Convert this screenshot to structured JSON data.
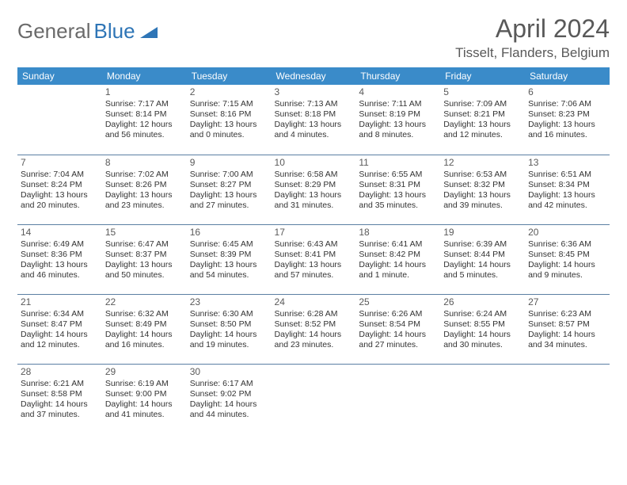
{
  "brand": {
    "text1": "General",
    "text2": "Blue",
    "color1": "#6a6a6a",
    "color2": "#2e75b6"
  },
  "title": "April 2024",
  "location": "Tisselt, Flanders, Belgium",
  "header_bg": "#3a8bc9",
  "weekdays": [
    "Sunday",
    "Monday",
    "Tuesday",
    "Wednesday",
    "Thursday",
    "Friday",
    "Saturday"
  ],
  "weeks": [
    [
      null,
      {
        "n": "1",
        "sr": "Sunrise: 7:17 AM",
        "ss": "Sunset: 8:14 PM",
        "dl": "Daylight: 12 hours and 56 minutes."
      },
      {
        "n": "2",
        "sr": "Sunrise: 7:15 AM",
        "ss": "Sunset: 8:16 PM",
        "dl": "Daylight: 13 hours and 0 minutes."
      },
      {
        "n": "3",
        "sr": "Sunrise: 7:13 AM",
        "ss": "Sunset: 8:18 PM",
        "dl": "Daylight: 13 hours and 4 minutes."
      },
      {
        "n": "4",
        "sr": "Sunrise: 7:11 AM",
        "ss": "Sunset: 8:19 PM",
        "dl": "Daylight: 13 hours and 8 minutes."
      },
      {
        "n": "5",
        "sr": "Sunrise: 7:09 AM",
        "ss": "Sunset: 8:21 PM",
        "dl": "Daylight: 13 hours and 12 minutes."
      },
      {
        "n": "6",
        "sr": "Sunrise: 7:06 AM",
        "ss": "Sunset: 8:23 PM",
        "dl": "Daylight: 13 hours and 16 minutes."
      }
    ],
    [
      {
        "n": "7",
        "sr": "Sunrise: 7:04 AM",
        "ss": "Sunset: 8:24 PM",
        "dl": "Daylight: 13 hours and 20 minutes."
      },
      {
        "n": "8",
        "sr": "Sunrise: 7:02 AM",
        "ss": "Sunset: 8:26 PM",
        "dl": "Daylight: 13 hours and 23 minutes."
      },
      {
        "n": "9",
        "sr": "Sunrise: 7:00 AM",
        "ss": "Sunset: 8:27 PM",
        "dl": "Daylight: 13 hours and 27 minutes."
      },
      {
        "n": "10",
        "sr": "Sunrise: 6:58 AM",
        "ss": "Sunset: 8:29 PM",
        "dl": "Daylight: 13 hours and 31 minutes."
      },
      {
        "n": "11",
        "sr": "Sunrise: 6:55 AM",
        "ss": "Sunset: 8:31 PM",
        "dl": "Daylight: 13 hours and 35 minutes."
      },
      {
        "n": "12",
        "sr": "Sunrise: 6:53 AM",
        "ss": "Sunset: 8:32 PM",
        "dl": "Daylight: 13 hours and 39 minutes."
      },
      {
        "n": "13",
        "sr": "Sunrise: 6:51 AM",
        "ss": "Sunset: 8:34 PM",
        "dl": "Daylight: 13 hours and 42 minutes."
      }
    ],
    [
      {
        "n": "14",
        "sr": "Sunrise: 6:49 AM",
        "ss": "Sunset: 8:36 PM",
        "dl": "Daylight: 13 hours and 46 minutes."
      },
      {
        "n": "15",
        "sr": "Sunrise: 6:47 AM",
        "ss": "Sunset: 8:37 PM",
        "dl": "Daylight: 13 hours and 50 minutes."
      },
      {
        "n": "16",
        "sr": "Sunrise: 6:45 AM",
        "ss": "Sunset: 8:39 PM",
        "dl": "Daylight: 13 hours and 54 minutes."
      },
      {
        "n": "17",
        "sr": "Sunrise: 6:43 AM",
        "ss": "Sunset: 8:41 PM",
        "dl": "Daylight: 13 hours and 57 minutes."
      },
      {
        "n": "18",
        "sr": "Sunrise: 6:41 AM",
        "ss": "Sunset: 8:42 PM",
        "dl": "Daylight: 14 hours and 1 minute."
      },
      {
        "n": "19",
        "sr": "Sunrise: 6:39 AM",
        "ss": "Sunset: 8:44 PM",
        "dl": "Daylight: 14 hours and 5 minutes."
      },
      {
        "n": "20",
        "sr": "Sunrise: 6:36 AM",
        "ss": "Sunset: 8:45 PM",
        "dl": "Daylight: 14 hours and 9 minutes."
      }
    ],
    [
      {
        "n": "21",
        "sr": "Sunrise: 6:34 AM",
        "ss": "Sunset: 8:47 PM",
        "dl": "Daylight: 14 hours and 12 minutes."
      },
      {
        "n": "22",
        "sr": "Sunrise: 6:32 AM",
        "ss": "Sunset: 8:49 PM",
        "dl": "Daylight: 14 hours and 16 minutes."
      },
      {
        "n": "23",
        "sr": "Sunrise: 6:30 AM",
        "ss": "Sunset: 8:50 PM",
        "dl": "Daylight: 14 hours and 19 minutes."
      },
      {
        "n": "24",
        "sr": "Sunrise: 6:28 AM",
        "ss": "Sunset: 8:52 PM",
        "dl": "Daylight: 14 hours and 23 minutes."
      },
      {
        "n": "25",
        "sr": "Sunrise: 6:26 AM",
        "ss": "Sunset: 8:54 PM",
        "dl": "Daylight: 14 hours and 27 minutes."
      },
      {
        "n": "26",
        "sr": "Sunrise: 6:24 AM",
        "ss": "Sunset: 8:55 PM",
        "dl": "Daylight: 14 hours and 30 minutes."
      },
      {
        "n": "27",
        "sr": "Sunrise: 6:23 AM",
        "ss": "Sunset: 8:57 PM",
        "dl": "Daylight: 14 hours and 34 minutes."
      }
    ],
    [
      {
        "n": "28",
        "sr": "Sunrise: 6:21 AM",
        "ss": "Sunset: 8:58 PM",
        "dl": "Daylight: 14 hours and 37 minutes."
      },
      {
        "n": "29",
        "sr": "Sunrise: 6:19 AM",
        "ss": "Sunset: 9:00 PM",
        "dl": "Daylight: 14 hours and 41 minutes."
      },
      {
        "n": "30",
        "sr": "Sunrise: 6:17 AM",
        "ss": "Sunset: 9:02 PM",
        "dl": "Daylight: 14 hours and 44 minutes."
      },
      null,
      null,
      null,
      null
    ]
  ]
}
